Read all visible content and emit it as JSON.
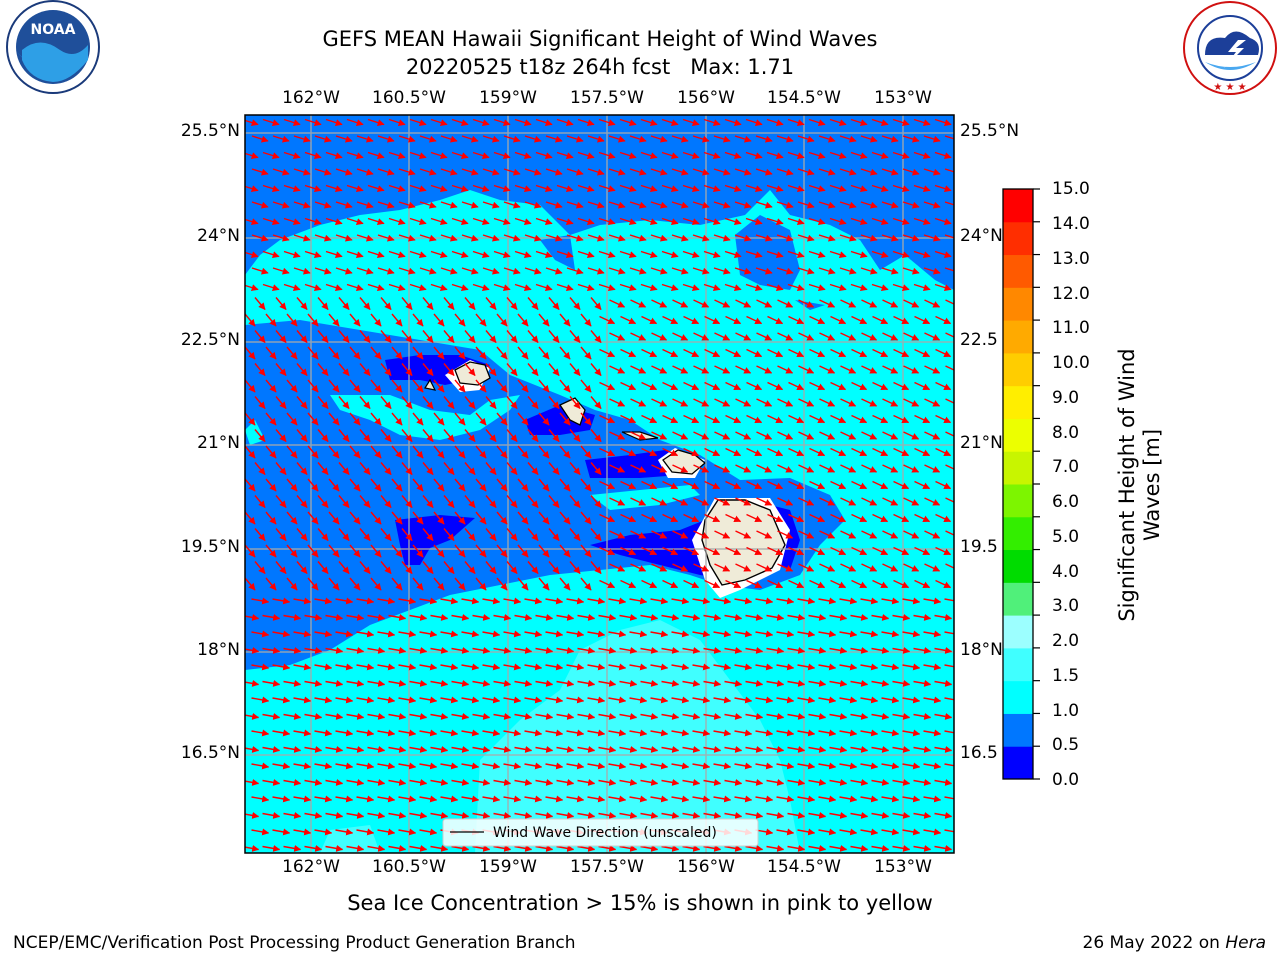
{
  "header": {
    "title_line1": "GEFS MEAN Hawaii Significant Height of Wind Waves",
    "title_line2": "20220525 t18z 264h fcst   Max: 1.71"
  },
  "logos": {
    "left": {
      "name": "noaa-logo",
      "text": "NOAA",
      "ring_text": "NATIONAL OCEANIC AND ATMOSPHERIC ADMINISTRATION · U.S. DEPARTMENT OF COMMERCE"
    },
    "right": {
      "name": "nws-logo",
      "ring_text": "NATIONAL WEATHER SERVICE"
    }
  },
  "map": {
    "lon_labels": [
      "162°W",
      "160.5°W",
      "159°W",
      "157.5°W",
      "156°W",
      "154.5°W",
      "153°W"
    ],
    "lat_labels": [
      "25.5°N",
      "24°N",
      "22.5°N",
      "21°N",
      "19.5°N",
      "18°N",
      "16.5°N"
    ],
    "lat_labels_right": [
      "25.5°N",
      "24°N",
      "22.5",
      "21°N",
      "19.5",
      "18°N",
      "16.5"
    ],
    "legend_label": "Wind Wave Direction (unscaled)",
    "arrow_color": "#ff0000",
    "land_color": "#efebd8"
  },
  "colorbar": {
    "label": "Significant Height of Wind Waves [m]",
    "label_line1": "Significant Height of Wind",
    "label_line2": "Waves [m]",
    "ticks": [
      "15.0",
      "14.0",
      "13.0",
      "12.0",
      "11.0",
      "10.0",
      "9.0",
      "8.0",
      "7.0",
      "6.0",
      "5.0",
      "4.0",
      "3.0",
      "2.0",
      "1.5",
      "1.0",
      "0.5",
      "0.0"
    ],
    "colors": [
      "#0000ff",
      "#0077ff",
      "#00ffff",
      "#40ffff",
      "#9cffff",
      "#50f07a",
      "#00dc00",
      "#33ee00",
      "#7df500",
      "#c8f500",
      "#ecff00",
      "#ffee00",
      "#ffcd00",
      "#ffaa00",
      "#ff8800",
      "#ff5a00",
      "#ff2e00",
      "#ff0000"
    ]
  },
  "caption": "Sea Ice Concentration > 15% is shown in pink to yellow",
  "footer": {
    "left": "NCEP/EMC/Verification Post Processing Product Generation Branch",
    "right_prefix": "26 May 2022 on ",
    "right_host": "Hera"
  }
}
